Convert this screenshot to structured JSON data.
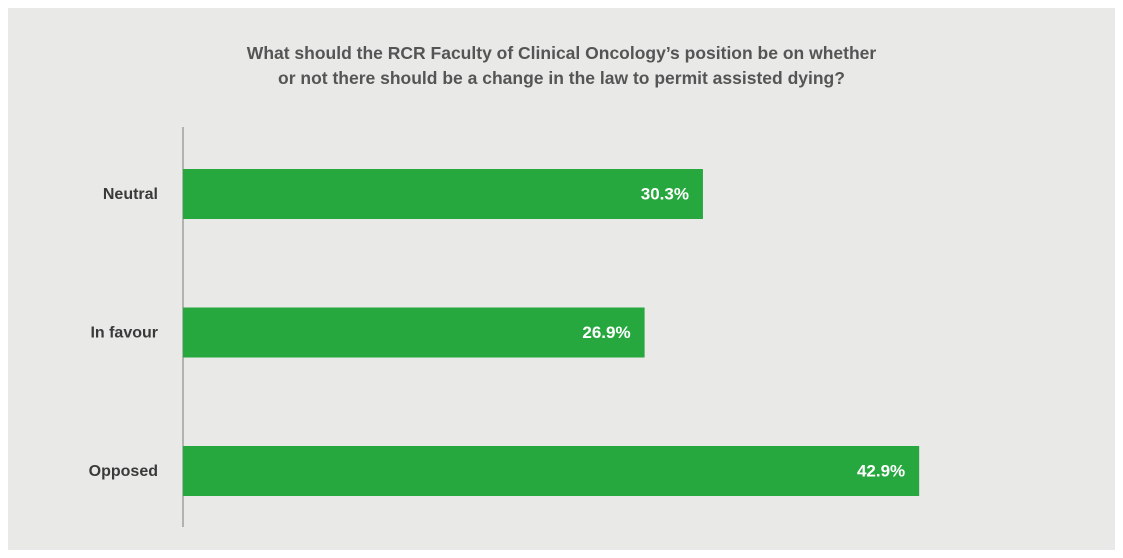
{
  "chart_data": {
    "type": "bar",
    "orientation": "horizontal",
    "title": "What should the RCR Faculty of Clinical Oncology’s position be on whether\nor not there should be a change in the law to permit assisted dying?",
    "categories": [
      "Neutral",
      "In favour",
      "Opposed"
    ],
    "values": [
      30.3,
      26.9,
      42.9
    ],
    "value_labels": [
      "30.3%",
      "26.9%",
      "42.9%"
    ],
    "color": "#27a83f"
  }
}
